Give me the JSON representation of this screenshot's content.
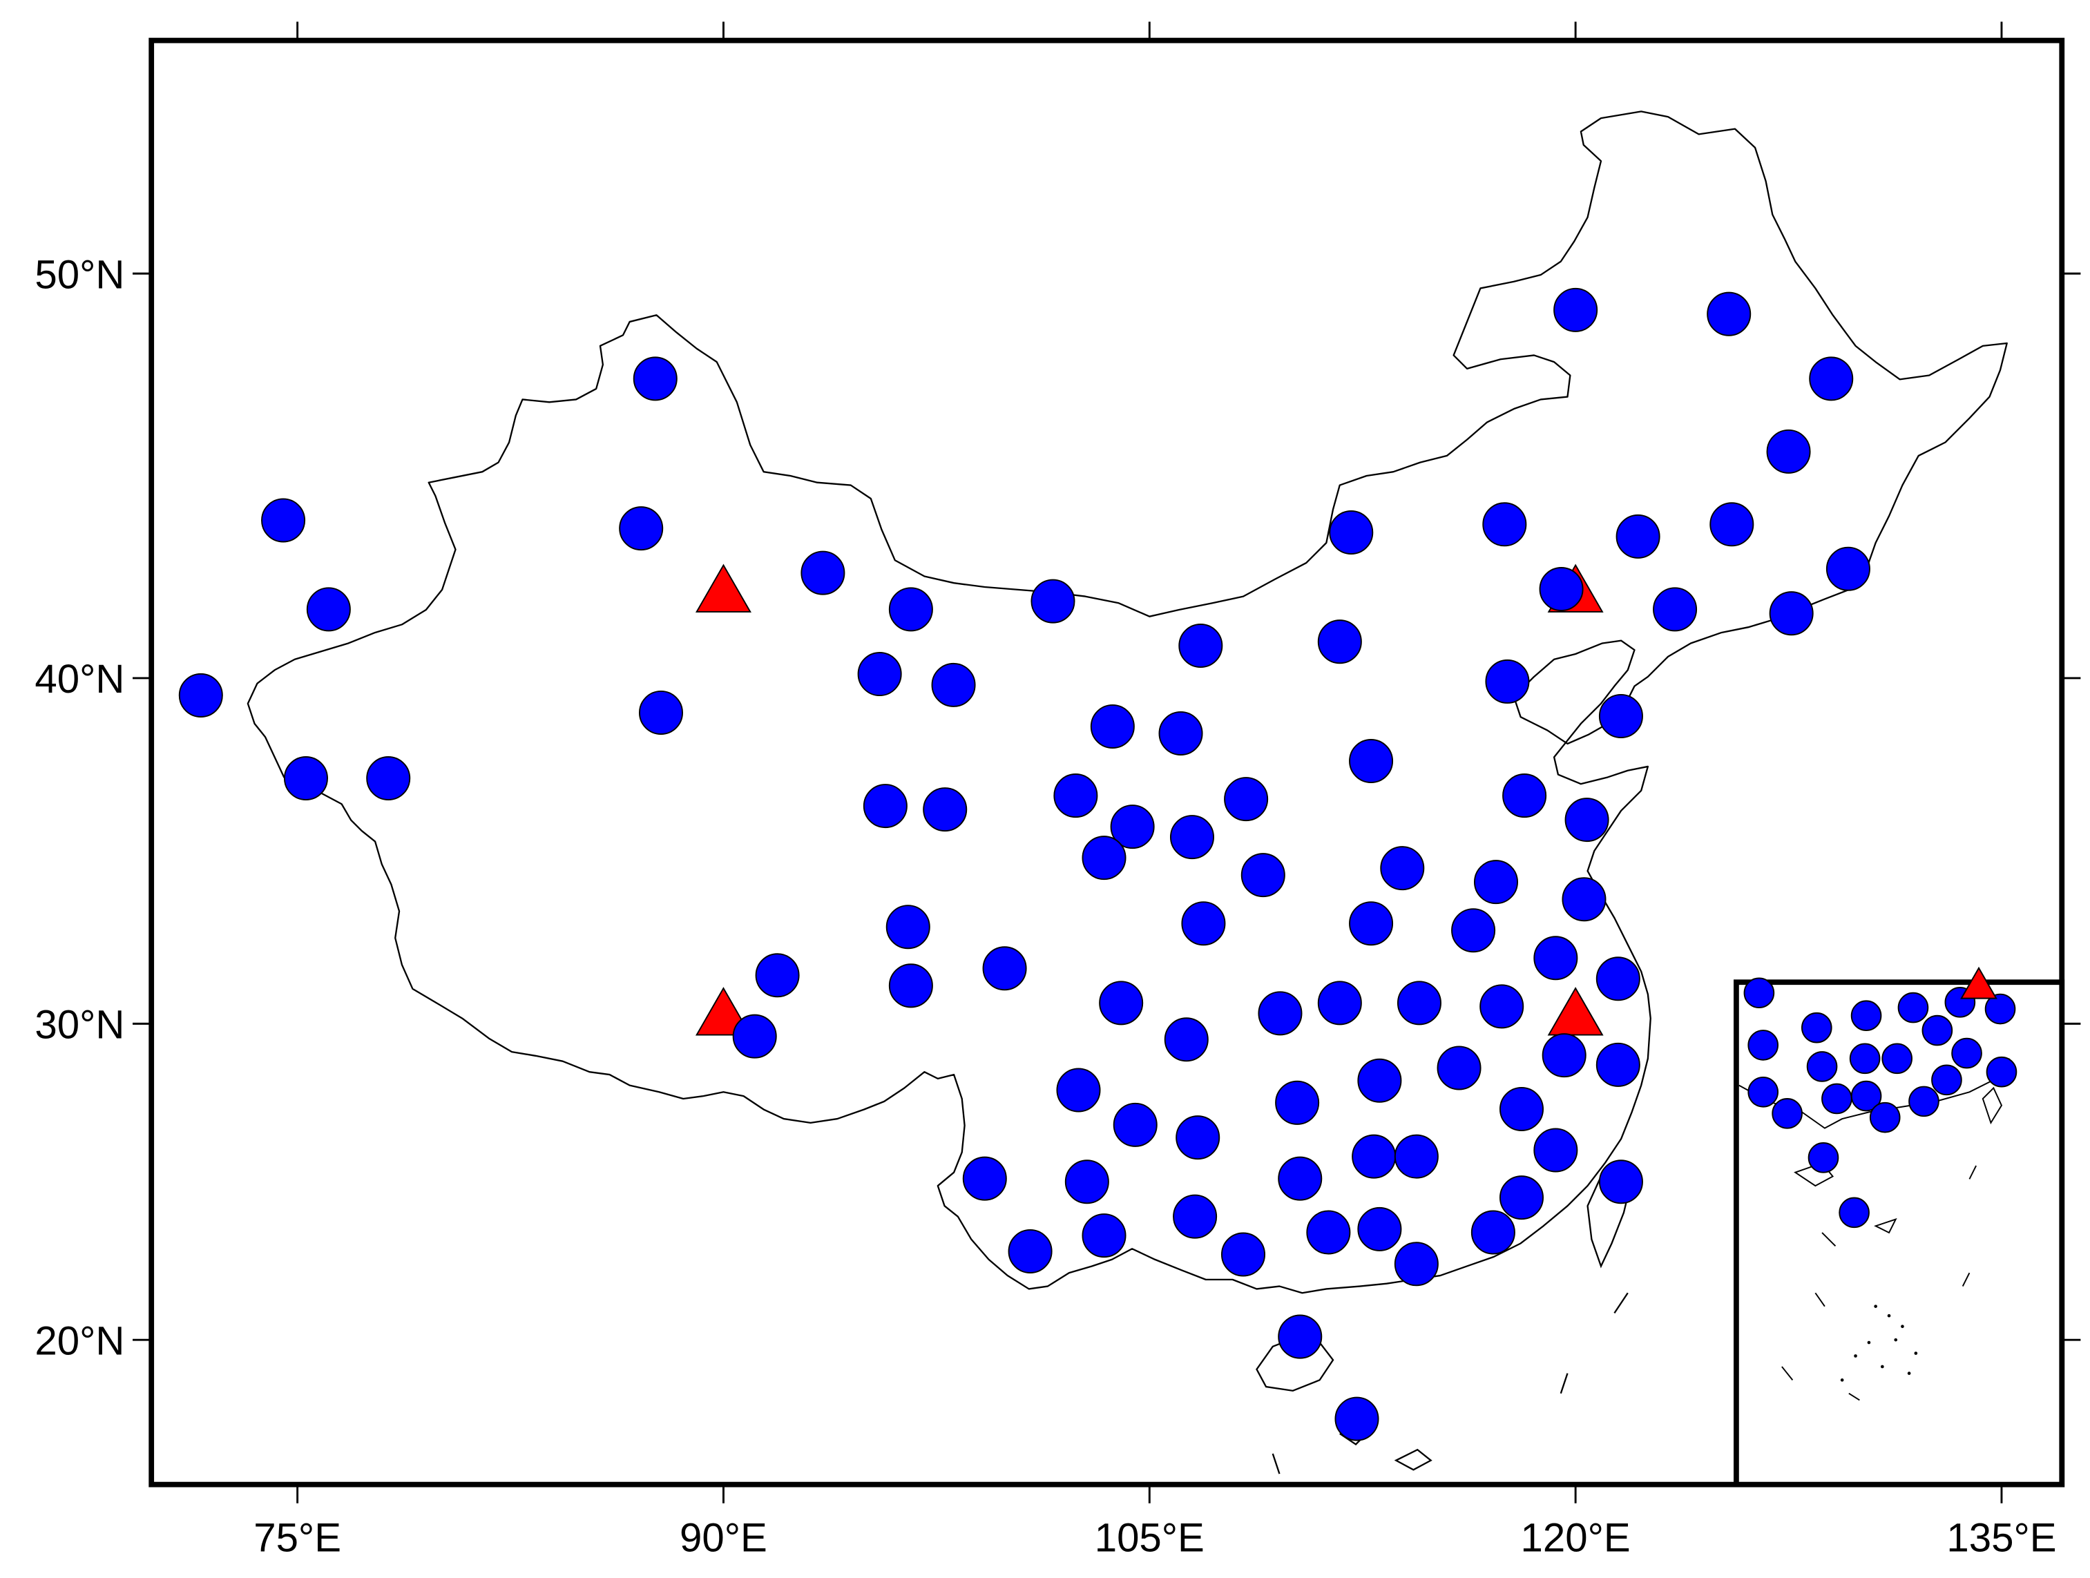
{
  "axes": {
    "x_ticks": [
      {
        "value": 75,
        "label": "75°E"
      },
      {
        "value": 90,
        "label": "90°E"
      },
      {
        "value": 105,
        "label": "105°E"
      },
      {
        "value": 120,
        "label": "120°E"
      },
      {
        "value": 135,
        "label": "135°E"
      }
    ],
    "y_ticks": [
      {
        "value": 50,
        "label": "50°N"
      },
      {
        "value": 40,
        "label": "40°N"
      },
      {
        "value": 30,
        "label": "30°N"
      },
      {
        "value": 20,
        "label": "20°N"
      }
    ],
    "lon_range": [
      70,
      137
    ],
    "lat_range": [
      15.5,
      55.5
    ]
  },
  "legend": {
    "station_marker": "blue-circle",
    "special_marker": "red-triangle"
  },
  "colors": {
    "station": "#0000ff",
    "triangle": "#ff0000",
    "border": "#000000",
    "background": "#ffffff"
  },
  "stations": [
    [
      120,
      49.1
    ],
    [
      125.4,
      49
    ],
    [
      129,
      47.4
    ],
    [
      127.5,
      45.6
    ],
    [
      125.5,
      43.8
    ],
    [
      129.6,
      42.7
    ],
    [
      122.2,
      43.5
    ],
    [
      123.5,
      41.7
    ],
    [
      127.6,
      41.6
    ],
    [
      119.5,
      42.2
    ],
    [
      117.5,
      43.8
    ],
    [
      112.1,
      43.6
    ],
    [
      111.7,
      40.9
    ],
    [
      117.6,
      39.9
    ],
    [
      121.6,
      38.9
    ],
    [
      118.2,
      36.6
    ],
    [
      120.4,
      35.9
    ],
    [
      120.3,
      33.6
    ],
    [
      121.5,
      31.3
    ],
    [
      112.8,
      37.6
    ],
    [
      113.9,
      34.5
    ],
    [
      117.2,
      34.1
    ],
    [
      116.4,
      32.7
    ],
    [
      119.3,
      31.9
    ],
    [
      108.4,
      36.5
    ],
    [
      109,
      34.3
    ],
    [
      106.8,
      40.8
    ],
    [
      103.7,
      38.6
    ],
    [
      106.1,
      38.4
    ],
    [
      102.4,
      36.6
    ],
    [
      104.4,
      35.7
    ],
    [
      106.5,
      35.4
    ],
    [
      103.4,
      34.8
    ],
    [
      106.9,
      32.9
    ],
    [
      112.8,
      32.9
    ],
    [
      96.6,
      41.7
    ],
    [
      101.6,
      41.9
    ],
    [
      93.5,
      42.6
    ],
    [
      95.5,
      40.1
    ],
    [
      98.1,
      39.8
    ],
    [
      95.7,
      36.3
    ],
    [
      97.8,
      36.2
    ],
    [
      87.6,
      47.4
    ],
    [
      74.5,
      43.9
    ],
    [
      87.1,
      43.7
    ],
    [
      76.1,
      41.7
    ],
    [
      71.6,
      39.5
    ],
    [
      87.8,
      39
    ],
    [
      75.3,
      37.1
    ],
    [
      78.2,
      37.1
    ],
    [
      96.5,
      32.8
    ],
    [
      96.6,
      31.1
    ],
    [
      99.9,
      31.6
    ],
    [
      91.9,
      31.4
    ],
    [
      91.1,
      29.6
    ],
    [
      104,
      30.6
    ],
    [
      106.3,
      29.5
    ],
    [
      109.6,
      30.3
    ],
    [
      111.7,
      30.6
    ],
    [
      114.5,
      30.6
    ],
    [
      117.4,
      30.5
    ],
    [
      119.6,
      29
    ],
    [
      121.5,
      28.7
    ],
    [
      102.5,
      27.9
    ],
    [
      104.5,
      26.8
    ],
    [
      106.7,
      26.4
    ],
    [
      110.2,
      27.5
    ],
    [
      113.1,
      28.2
    ],
    [
      115.9,
      28.6
    ],
    [
      118.1,
      27.3
    ],
    [
      119.3,
      26
    ],
    [
      118.1,
      24.5
    ],
    [
      121.6,
      25
    ],
    [
      112.9,
      25.8
    ],
    [
      114.4,
      25.8
    ],
    [
      110.3,
      25.1
    ],
    [
      102.8,
      25
    ],
    [
      99.2,
      25.1
    ],
    [
      100.8,
      22.8
    ],
    [
      103.4,
      23.3
    ],
    [
      106.6,
      23.9
    ],
    [
      108.3,
      22.7
    ],
    [
      111.3,
      23.4
    ],
    [
      113.1,
      23.5
    ],
    [
      114.4,
      22.4
    ],
    [
      117.1,
      23.4
    ],
    [
      110.3,
      20.1
    ],
    [
      112.3,
      17.5
    ]
  ],
  "triangles": [
    [
      90,
      42
    ],
    [
      90,
      30.1
    ],
    [
      120,
      42
    ],
    [
      120,
      30.1
    ]
  ],
  "inset_stations": [
    [
      1313,
      741
    ],
    [
      1316,
      780
    ],
    [
      1356,
      767
    ],
    [
      1393,
      758
    ],
    [
      1428,
      752
    ],
    [
      1463,
      748
    ],
    [
      1493,
      753
    ],
    [
      1360,
      796
    ],
    [
      1392,
      790
    ],
    [
      1416,
      790
    ],
    [
      1446,
      769
    ],
    [
      1468,
      786
    ],
    [
      1316,
      815
    ],
    [
      1334,
      831
    ],
    [
      1371,
      820
    ],
    [
      1393,
      818
    ],
    [
      1407,
      834
    ],
    [
      1436,
      822
    ],
    [
      1453,
      806
    ],
    [
      1494,
      800
    ],
    [
      1361,
      864
    ],
    [
      1384,
      905
    ]
  ],
  "inset_triangles": [
    [
      1477,
      736
    ]
  ]
}
